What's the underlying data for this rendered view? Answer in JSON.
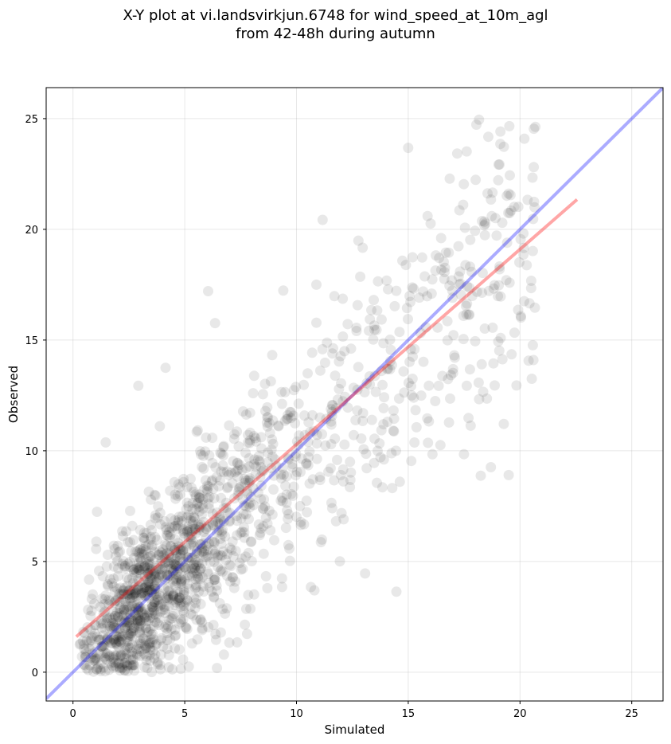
{
  "chart_data": {
    "type": "scatter",
    "title_line1": "X-Y plot at vi.landsvirkjun.6748 for wind_speed_at_10m_agl",
    "title_line2": "from 42-48h during autumn",
    "xlabel": "Simulated",
    "ylabel": "Observed",
    "xlim": [
      -1.2,
      26.4
    ],
    "ylim": [
      -1.3,
      26.4
    ],
    "xticks": [
      0,
      5,
      10,
      15,
      20,
      25
    ],
    "yticks": [
      0,
      5,
      10,
      15,
      20,
      25
    ],
    "grid": true,
    "point_color": "#000000",
    "identity_line": {
      "color": "#0000ff",
      "from": [
        -1.2,
        -1.2
      ],
      "to": [
        26.4,
        26.4
      ]
    },
    "regression_line": {
      "color": "#ff0000",
      "from": [
        0.2,
        1.65
      ],
      "to": [
        22.5,
        21.3
      ]
    },
    "points_seed": 6748,
    "points_count": 1600
  }
}
